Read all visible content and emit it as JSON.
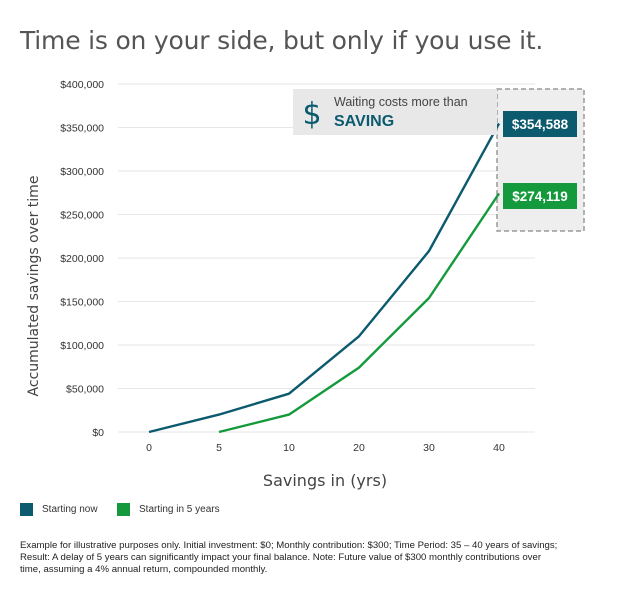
{
  "page": {
    "title": "Time is on your side, but only if you use it.",
    "footnote_lines": [
      "Example for illustrative purposes only. Initial investment: $0; Monthly contribution: $300; Time Period: 35 – 40 years of savings;",
      "Result: A delay of 5 years can significantly impact your final balance. Note: Future value of $300 monthly contributions over",
      "time, assuming a 4% annual return, compounded monthly."
    ]
  },
  "callout": {
    "icon": "dollar-sign-icon",
    "symbol": "$",
    "line1": "Waiting costs more than",
    "line2": "SAVING"
  },
  "colors": {
    "starting_now": "#0b5a6e",
    "starting_later": "#149a3c",
    "text": "#333333",
    "grid": "#e6e6e6",
    "callout_bg": "#e8e8e8",
    "dashed_border": "#9a9a9a"
  },
  "chart_data": {
    "type": "line",
    "xlabel": "Savings in (yrs)",
    "ylabel": "Accumulated savings over time",
    "categories": [
      "0",
      "5",
      "10",
      "20",
      "30",
      "40"
    ],
    "ylim": [
      0,
      400000
    ],
    "yticks": [
      0,
      50000,
      100000,
      150000,
      200000,
      250000,
      300000,
      350000,
      400000
    ],
    "ytick_labels": [
      "$0",
      "$50,000",
      "$100,000",
      "$150,000",
      "$200,000",
      "$250,000",
      "$300,000",
      "$350,000",
      "$400,000"
    ],
    "grid": true,
    "legend_position": "bottom-left",
    "series": [
      {
        "name": "Starting now",
        "color": "#0b5a6e",
        "values": [
          0,
          20000,
          44000,
          110000,
          208000,
          354588
        ],
        "end_label": "$354,588"
      },
      {
        "name": "Starting in 5 years",
        "color": "#149a3c",
        "values": [
          null,
          0,
          20000,
          74000,
          154000,
          274119
        ],
        "end_label": "$274,119"
      }
    ]
  }
}
